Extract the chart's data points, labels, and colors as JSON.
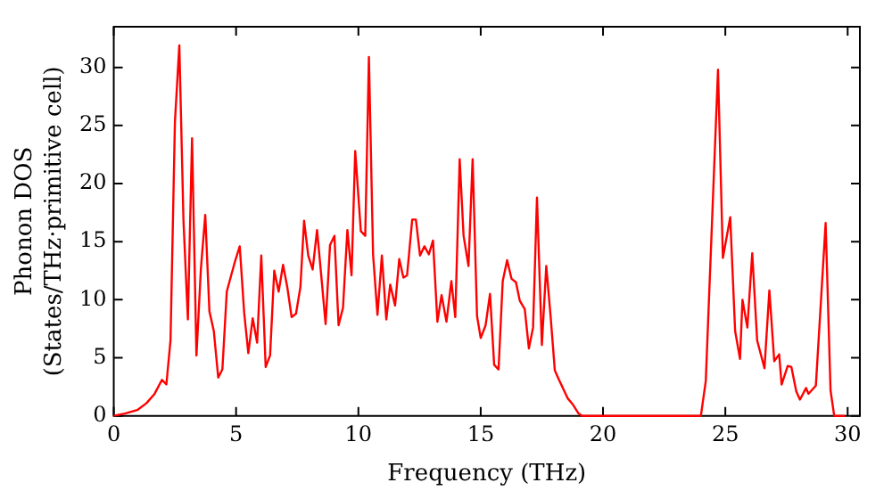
{
  "chart_data": {
    "type": "line",
    "xlabel": "Frequency (THz)",
    "ylabel": "Phonon DOS\n(States/THz·primitive cell)",
    "xlim": [
      0,
      30.5
    ],
    "ylim": [
      0,
      33.5
    ],
    "xticks": [
      0,
      5,
      10,
      15,
      20,
      25,
      30
    ],
    "yticks": [
      0,
      5,
      10,
      15,
      20,
      25,
      30
    ],
    "grid": false,
    "legend": false,
    "marker": "none",
    "line_style": "solid",
    "series": [
      {
        "color": "#ff0000",
        "x": [
          0,
          0.45,
          0.96,
          1.34,
          1.67,
          1.97,
          2.15,
          2.32,
          2.5,
          2.68,
          2.85,
          3.03,
          3.2,
          3.38,
          3.56,
          3.74,
          3.91,
          4.09,
          4.27,
          4.44,
          4.62,
          4.8,
          4.97,
          5.15,
          5.33,
          5.5,
          5.68,
          5.86,
          6.03,
          6.21,
          6.39,
          6.56,
          6.74,
          6.92,
          7.1,
          7.27,
          7.45,
          7.63,
          7.78,
          7.95,
          8.13,
          8.31,
          8.48,
          8.66,
          8.84,
          9.02,
          9.19,
          9.37,
          9.55,
          9.72,
          9.87,
          10.1,
          10.28,
          10.43,
          10.6,
          10.78,
          10.96,
          11.14,
          11.3,
          11.5,
          11.67,
          11.84,
          11.99,
          12.2,
          12.35,
          12.52,
          12.7,
          12.88,
          13.05,
          13.23,
          13.4,
          13.6,
          13.8,
          13.96,
          14.14,
          14.3,
          14.5,
          14.67,
          14.85,
          15.0,
          15.2,
          15.38,
          15.55,
          15.73,
          15.9,
          16.08,
          16.26,
          16.44,
          16.6,
          16.8,
          16.97,
          17.14,
          17.3,
          17.5,
          17.68,
          17.86,
          18.03,
          18.2,
          18.38,
          18.56,
          18.76,
          19.0,
          19.15,
          24.0,
          24.2,
          24.7,
          24.9,
          25.2,
          25.4,
          25.6,
          25.7,
          25.9,
          26.1,
          26.3,
          26.6,
          26.8,
          27.0,
          27.2,
          27.3,
          27.55,
          27.7,
          27.9,
          28.05,
          28.3,
          28.4,
          28.7,
          29.1,
          29.3,
          29.45,
          29.9
        ],
        "values": [
          0,
          0.2,
          0.5,
          1.1,
          1.9,
          3.1,
          2.7,
          6.5,
          25.3,
          31.9,
          16.8,
          8.3,
          23.9,
          5.2,
          12.6,
          17.3,
          9.0,
          7.3,
          3.3,
          4.0,
          10.7,
          12.1,
          13.4,
          14.6,
          8.9,
          5.4,
          8.4,
          6.3,
          13.8,
          4.2,
          5.2,
          12.5,
          10.7,
          13.0,
          11.0,
          8.5,
          8.8,
          11.1,
          16.8,
          13.8,
          12.6,
          16.0,
          12.1,
          7.9,
          14.7,
          15.5,
          7.8,
          9.3,
          16.0,
          12.1,
          22.8,
          15.9,
          15.5,
          30.9,
          13.9,
          8.7,
          13.8,
          8.3,
          11.3,
          9.5,
          13.5,
          11.9,
          12.1,
          16.9,
          16.9,
          13.8,
          14.6,
          13.9,
          15.1,
          8.1,
          10.4,
          8.1,
          11.6,
          8.5,
          22.1,
          15.5,
          12.9,
          22.1,
          8.6,
          6.7,
          7.8,
          10.5,
          4.4,
          4.0,
          11.6,
          13.4,
          11.8,
          11.5,
          9.9,
          9.2,
          5.8,
          7.6,
          18.8,
          6.1,
          12.9,
          8.5,
          3.9,
          3.1,
          2.3,
          1.5,
          1.0,
          0.2,
          0,
          0,
          3,
          29.8,
          13.6,
          17.1,
          7.3,
          4.9,
          10,
          7.6,
          14,
          6.5,
          4.1,
          10.8,
          4.7,
          5.3,
          2.7,
          4.3,
          4.2,
          2.1,
          1.4,
          2.4,
          1.9,
          2.6,
          16.6,
          2.2,
          0,
          0
        ]
      }
    ]
  }
}
